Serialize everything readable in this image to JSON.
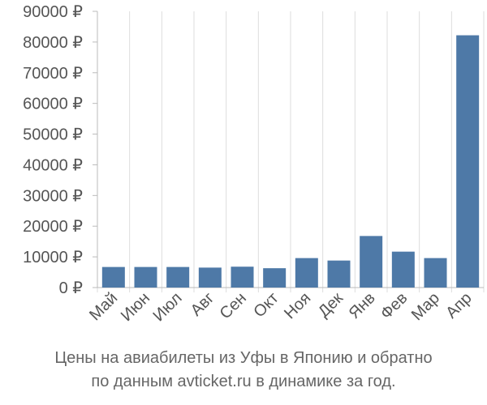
{
  "chart_data": {
    "type": "bar",
    "title": [
      "Цены на авиабилеты из Уфы в Японию и обратно",
      "по данным avticket.ru в динамике за год."
    ],
    "categories": [
      "Май",
      "Июн",
      "Июл",
      "Авг",
      "Сен",
      "Окт",
      "Ноя",
      "Дек",
      "Янв",
      "Фев",
      "Мар",
      "Апр"
    ],
    "values": [
      6700,
      6700,
      6700,
      6500,
      6800,
      6300,
      9600,
      8800,
      16800,
      11700,
      9600,
      82200
    ],
    "color": "#4e79a7",
    "ylim": [
      0,
      90000
    ],
    "yticks": [
      {
        "value": 0,
        "label": "0 ₽"
      },
      {
        "value": 10000,
        "label": "10000 ₽"
      },
      {
        "value": 20000,
        "label": "20000 ₽"
      },
      {
        "value": 30000,
        "label": "30000 ₽"
      },
      {
        "value": 40000,
        "label": "40000 ₽"
      },
      {
        "value": 50000,
        "label": "50000 ₽"
      },
      {
        "value": 60000,
        "label": "60000 ₽"
      },
      {
        "value": 70000,
        "label": "70000 ₽"
      },
      {
        "value": 80000,
        "label": "80000 ₽"
      },
      {
        "value": 90000,
        "label": "90000 ₽"
      }
    ]
  }
}
